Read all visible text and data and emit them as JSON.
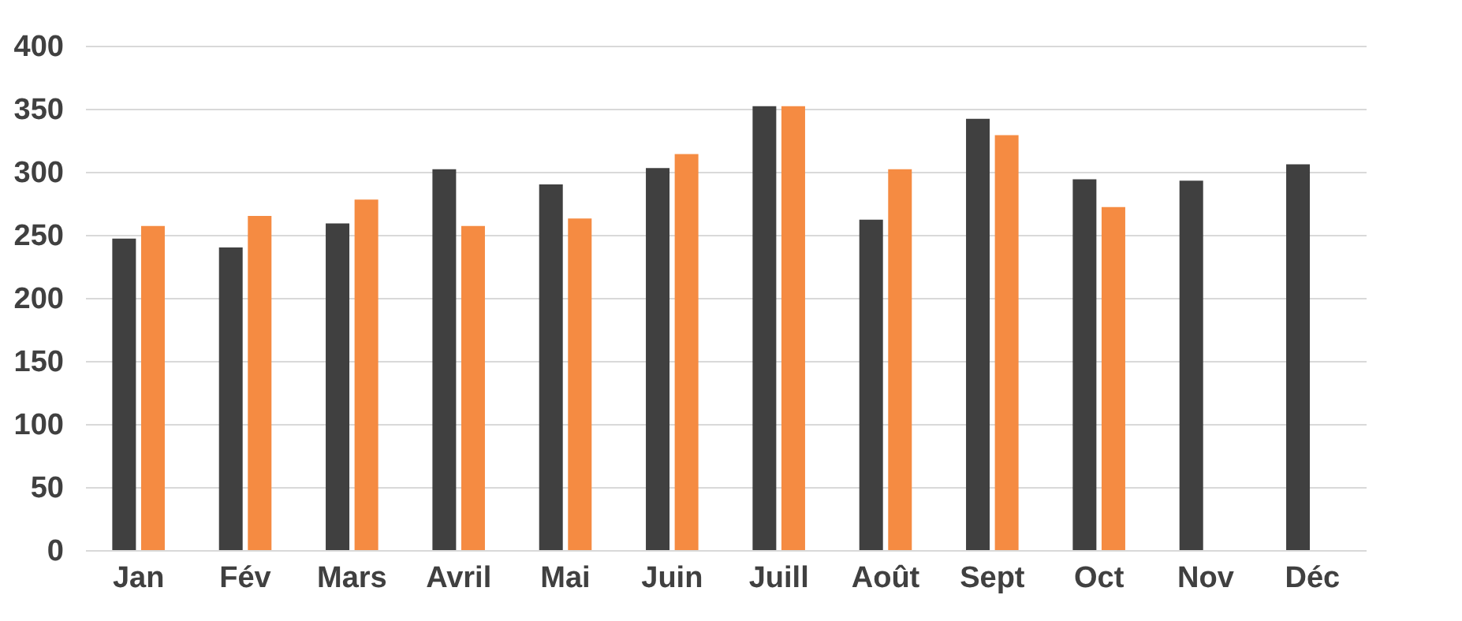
{
  "chart_data": {
    "type": "bar",
    "categories": [
      "Jan",
      "Fév",
      "Mars",
      "Avril",
      "Mai",
      "Juin",
      "Juill",
      "Août",
      "Sept",
      "Oct",
      "Nov",
      "Déc"
    ],
    "series": [
      {
        "color": "#404040",
        "values": [
          247,
          240,
          259,
          302,
          290,
          303,
          352,
          262,
          342,
          294,
          293,
          306
        ]
      },
      {
        "color": "#f58b42",
        "values": [
          257,
          265,
          278,
          257,
          263,
          314,
          352,
          302,
          329,
          272,
          null,
          null
        ]
      }
    ],
    "ylim": [
      0,
      400
    ],
    "yticks": [
      0,
      50,
      100,
      150,
      200,
      250,
      300,
      350,
      400
    ],
    "grid": "y",
    "legend": false
  }
}
